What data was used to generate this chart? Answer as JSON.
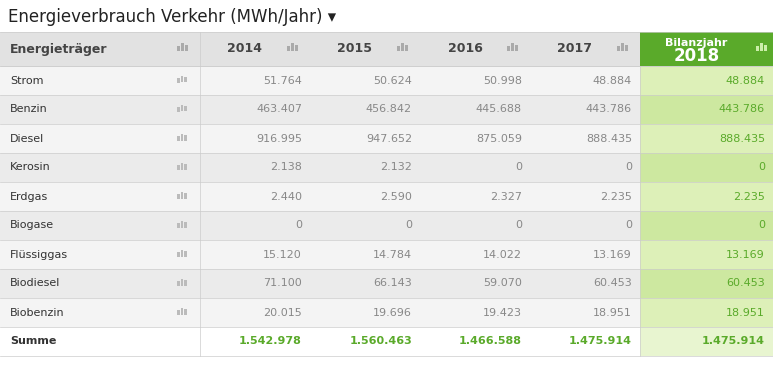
{
  "title": "Energieverbrauch Verkehr (MWh/Jahr) ▾",
  "rows": [
    [
      "Strom",
      "51.764",
      "50.624",
      "50.998",
      "48.884",
      "48.884"
    ],
    [
      "Benzin",
      "463.407",
      "456.842",
      "445.688",
      "443.786",
      "443.786"
    ],
    [
      "Diesel",
      "916.995",
      "947.652",
      "875.059",
      "888.435",
      "888.435"
    ],
    [
      "Kerosin",
      "2.138",
      "2.132",
      "0",
      "0",
      "0"
    ],
    [
      "Erdgas",
      "2.440",
      "2.590",
      "2.327",
      "2.235",
      "2.235"
    ],
    [
      "Biogase",
      "0",
      "0",
      "0",
      "0",
      "0"
    ],
    [
      "Flüssiggas",
      "15.120",
      "14.784",
      "14.022",
      "13.169",
      "13.169"
    ],
    [
      "Biodiesel",
      "71.100",
      "66.143",
      "59.070",
      "60.453",
      "60.453"
    ],
    [
      "Biobenzin",
      "20.015",
      "19.696",
      "19.423",
      "18.951",
      "18.951"
    ]
  ],
  "summe_row": [
    "Summe",
    "1.542.978",
    "1.560.463",
    "1.466.588",
    "1.475.914",
    "1.475.914"
  ],
  "year_headers": [
    "2014",
    "2015",
    "2016",
    "2017"
  ],
  "bg_header_label": "#e2e2e2",
  "bg_header_years": "#e2e2e2",
  "bg_header_2018": "#5aaa2a",
  "bg_row_odd": "#f4f4f4",
  "bg_row_even": "#ebebeb",
  "bg_col_2018_odd": "#ddf0b8",
  "bg_col_2018_even": "#cde8a0",
  "bg_summe_main": "#ffffff",
  "bg_summe_2018": "#e8f5d0",
  "text_header_2018": "#ffffff",
  "text_normal": "#888888",
  "text_label_header": "#444444",
  "text_label_row": "#333333",
  "text_summe": "#5aaa2a",
  "text_col_2018": "#5aaa2a",
  "icon_color_header": "#aaaaaa",
  "icon_color_row": "#aaaaaa",
  "icon_color_2018_header": "#cceeaa",
  "font_size_title": 12,
  "font_size_header": 9,
  "font_size_body": 8,
  "font_size_summe": 8
}
